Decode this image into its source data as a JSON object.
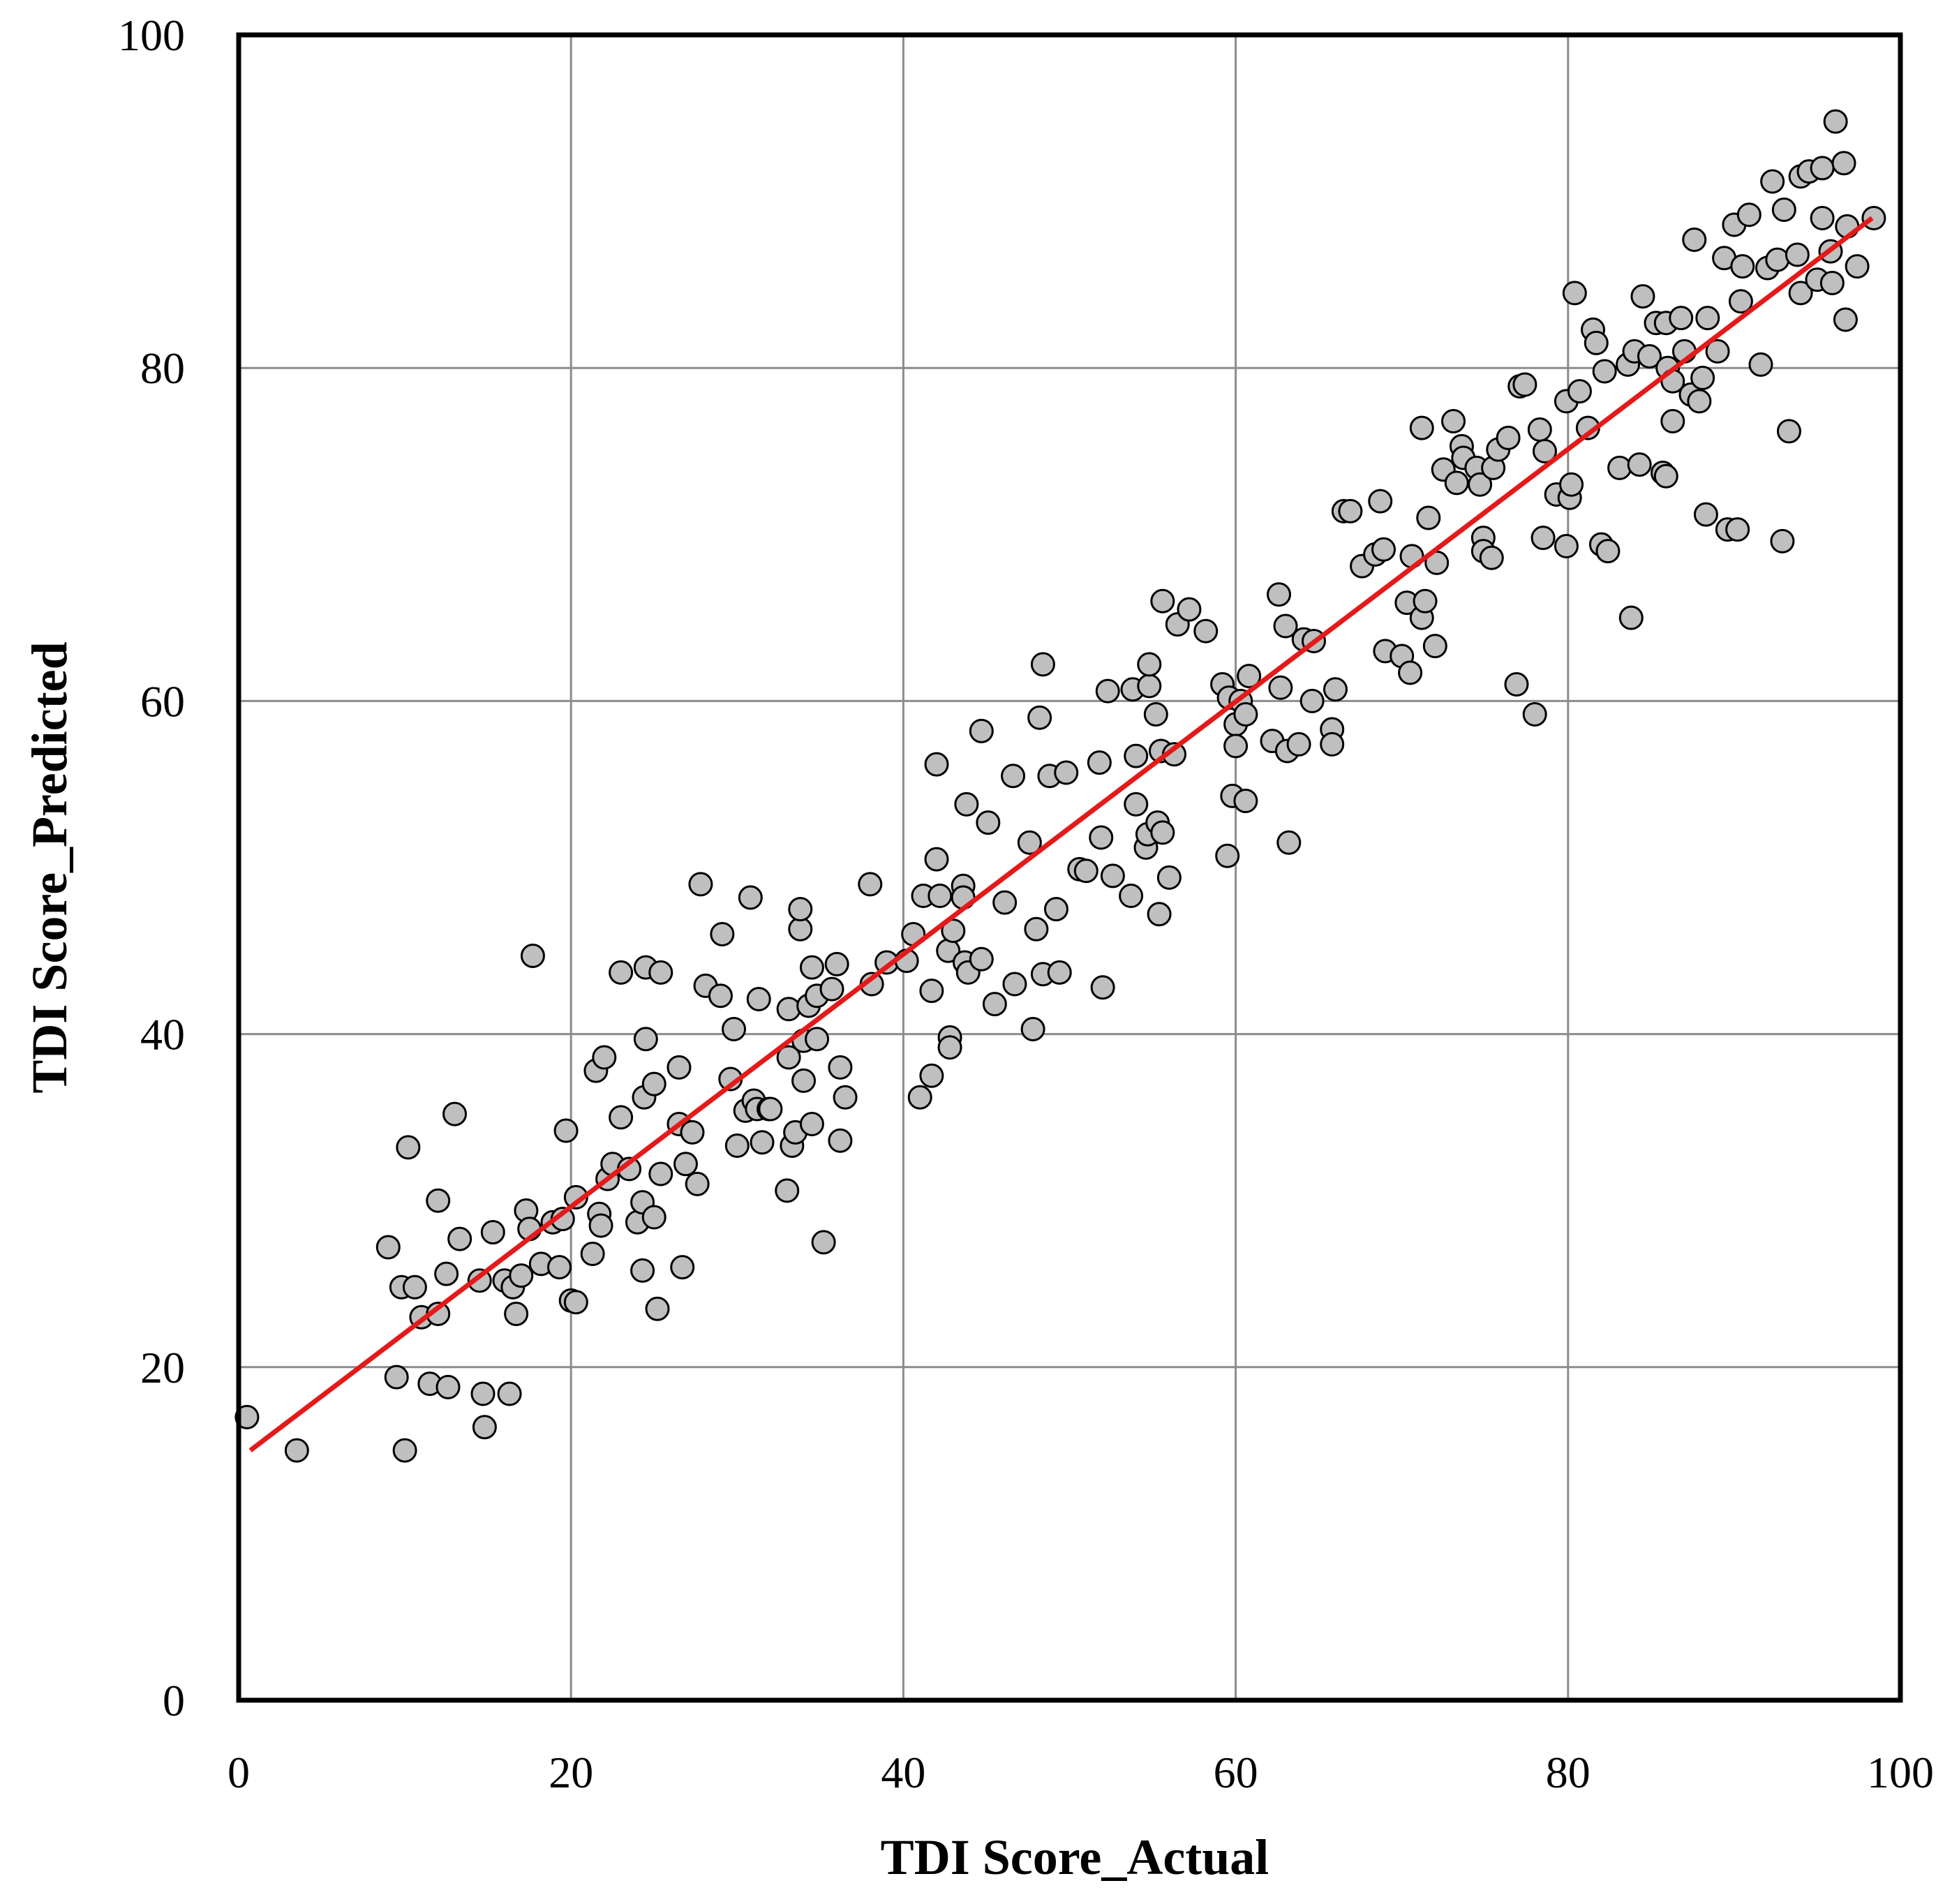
{
  "chart_data": {
    "type": "scatter",
    "title": "",
    "xlabel": "TDI Score_Actual",
    "ylabel": "TDI Score_Predicted",
    "xlim": [
      0,
      100
    ],
    "ylim": [
      0,
      100
    ],
    "xticks": [
      "0",
      "20",
      "40",
      "60",
      "80",
      "100"
    ],
    "yticks": [
      "0",
      "20",
      "40",
      "60",
      "80",
      "100"
    ],
    "grid": true,
    "legend": "none",
    "colors": {
      "marker_fill": "#bfbfbf",
      "marker_edge": "#000000",
      "fit_line": "#e41a1a",
      "grid": "#8c8c8c"
    },
    "fit_line": {
      "x": [
        0.7,
        98.3
      ],
      "y": [
        15,
        89
      ]
    },
    "points": [
      [
        0.5,
        17
      ],
      [
        3.5,
        15
      ],
      [
        9,
        27.2
      ],
      [
        9.5,
        19.4
      ],
      [
        10,
        15
      ],
      [
        10.2,
        33.2
      ],
      [
        9.8,
        24.8
      ],
      [
        10.6,
        24.8
      ],
      [
        11,
        23
      ],
      [
        11.5,
        19
      ],
      [
        12,
        30
      ],
      [
        12,
        23.2
      ],
      [
        12.5,
        25.6
      ],
      [
        12.6,
        18.8
      ],
      [
        13,
        35.2
      ],
      [
        13.3,
        27.7
      ],
      [
        14.5,
        25.2
      ],
      [
        14.7,
        18.4
      ],
      [
        14.8,
        16.4
      ],
      [
        15.3,
        28.1
      ],
      [
        16,
        25.2
      ],
      [
        16.3,
        18.4
      ],
      [
        16.5,
        24.8
      ],
      [
        16.7,
        23.2
      ],
      [
        17,
        25.5
      ],
      [
        17.3,
        29.4
      ],
      [
        17.5,
        28.3
      ],
      [
        17.7,
        44.7
      ],
      [
        18.2,
        26.2
      ],
      [
        18.9,
        28.7
      ],
      [
        19.3,
        26
      ],
      [
        19.5,
        28.9
      ],
      [
        19.7,
        34.2
      ],
      [
        20,
        24
      ],
      [
        20.3,
        23.9
      ],
      [
        20.3,
        30.2
      ],
      [
        21.3,
        26.8
      ],
      [
        21.5,
        37.8
      ],
      [
        21.7,
        29.2
      ],
      [
        21.8,
        28.5
      ],
      [
        22,
        38.6
      ],
      [
        22.2,
        31.3
      ],
      [
        22.5,
        32.2
      ],
      [
        23,
        35
      ],
      [
        23,
        43.7
      ],
      [
        23.5,
        31.9
      ],
      [
        24,
        28.7
      ],
      [
        24.3,
        29.9
      ],
      [
        24.3,
        25.8
      ],
      [
        24.4,
        36.2
      ],
      [
        24.5,
        39.7
      ],
      [
        24.5,
        44
      ],
      [
        25,
        29
      ],
      [
        25,
        37
      ],
      [
        25.2,
        23.5
      ],
      [
        25.4,
        31.6
      ],
      [
        25.4,
        43.7
      ],
      [
        26.5,
        34.6
      ],
      [
        26.5,
        38
      ],
      [
        26.7,
        26
      ],
      [
        26.9,
        32.2
      ],
      [
        27.3,
        34.1
      ],
      [
        27.6,
        31
      ],
      [
        27.8,
        49
      ],
      [
        28.1,
        42.9
      ],
      [
        29,
        42.3
      ],
      [
        29.1,
        46
      ],
      [
        29.6,
        37.3
      ],
      [
        29.8,
        40.3
      ],
      [
        30,
        33.3
      ],
      [
        30.5,
        35.4
      ],
      [
        30.8,
        48.2
      ],
      [
        31,
        36
      ],
      [
        31.2,
        35.5
      ],
      [
        31.3,
        42.1
      ],
      [
        31.5,
        33.5
      ],
      [
        31.9,
        35.5
      ],
      [
        32,
        35.5
      ],
      [
        33,
        30.6
      ],
      [
        33.1,
        41.5
      ],
      [
        33.1,
        38.6
      ],
      [
        33.3,
        33.3
      ],
      [
        33.5,
        34.1
      ],
      [
        33.8,
        46.3
      ],
      [
        33.8,
        47.5
      ],
      [
        34,
        37.2
      ],
      [
        34,
        39.6
      ],
      [
        34.3,
        41.7
      ],
      [
        34.5,
        44
      ],
      [
        34.5,
        34.6
      ],
      [
        34.8,
        39.7
      ],
      [
        34.8,
        42.3
      ],
      [
        35.2,
        27.5
      ],
      [
        35.7,
        42.7
      ],
      [
        36,
        44.2
      ],
      [
        36.2,
        38
      ],
      [
        36.2,
        33.6
      ],
      [
        36.5,
        36.2
      ],
      [
        38,
        49
      ],
      [
        38.1,
        43
      ],
      [
        39,
        44.3
      ],
      [
        40.2,
        44.4
      ],
      [
        40.6,
        46
      ],
      [
        41,
        36.2
      ],
      [
        41.2,
        48.3
      ],
      [
        41.7,
        37.5
      ],
      [
        41.7,
        42.6
      ],
      [
        42,
        56.2
      ],
      [
        42,
        50.5
      ],
      [
        42.2,
        48.3
      ],
      [
        42.7,
        45
      ],
      [
        42.8,
        39.8
      ],
      [
        42.8,
        39.2
      ],
      [
        43,
        46.2
      ],
      [
        43.6,
        48.9
      ],
      [
        43.6,
        48.2
      ],
      [
        43.7,
        44.3
      ],
      [
        43.8,
        53.8
      ],
      [
        43.9,
        43.7
      ],
      [
        44.7,
        58.2
      ],
      [
        44.7,
        44.5
      ],
      [
        45.1,
        52.7
      ],
      [
        45.5,
        41.8
      ],
      [
        46.1,
        47.9
      ],
      [
        46.6,
        55.5
      ],
      [
        46.7,
        43
      ],
      [
        47.6,
        51.5
      ],
      [
        47.8,
        40.3
      ],
      [
        48,
        46.3
      ],
      [
        48.2,
        59
      ],
      [
        48.4,
        43.6
      ],
      [
        48.4,
        62.2
      ],
      [
        48.8,
        55.5
      ],
      [
        49.2,
        47.5
      ],
      [
        49.4,
        43.7
      ],
      [
        49.8,
        55.7
      ],
      [
        50.6,
        49.9
      ],
      [
        51,
        49.8
      ],
      [
        51.8,
        56.3
      ],
      [
        51.9,
        51.8
      ],
      [
        52,
        42.8
      ],
      [
        52.3,
        60.6
      ],
      [
        52.6,
        49.5
      ],
      [
        53.7,
        48.3
      ],
      [
        53.8,
        60.7
      ],
      [
        54,
        56.7
      ],
      [
        54,
        53.8
      ],
      [
        54.6,
        51.2
      ],
      [
        54.7,
        52
      ],
      [
        54.8,
        60.9
      ],
      [
        54.8,
        62.2
      ],
      [
        55.2,
        59.2
      ],
      [
        55.3,
        52.7
      ],
      [
        55.4,
        47.2
      ],
      [
        55.5,
        57
      ],
      [
        55.6,
        52.1
      ],
      [
        55.6,
        66
      ],
      [
        56,
        49.4
      ],
      [
        56.3,
        56.8
      ],
      [
        56.5,
        64.6
      ],
      [
        57.2,
        65.5
      ],
      [
        58.2,
        64.2
      ],
      [
        59.2,
        61
      ],
      [
        59.5,
        50.7
      ],
      [
        59.6,
        60.2
      ],
      [
        59.8,
        54.3
      ],
      [
        60,
        58.6
      ],
      [
        60,
        57.3
      ],
      [
        60.3,
        60
      ],
      [
        60.6,
        54
      ],
      [
        60.6,
        59.2
      ],
      [
        60.8,
        61.5
      ],
      [
        62.2,
        57.6
      ],
      [
        62.6,
        66.4
      ],
      [
        62.7,
        60.8
      ],
      [
        63,
        64.5
      ],
      [
        63.1,
        57
      ],
      [
        63.2,
        51.5
      ],
      [
        63.8,
        57.4
      ],
      [
        64.1,
        63.7
      ],
      [
        64.6,
        60
      ],
      [
        64.7,
        63.6
      ],
      [
        65.8,
        58.3
      ],
      [
        65.8,
        57.4
      ],
      [
        66,
        60.7
      ],
      [
        66.5,
        71.4
      ],
      [
        66.9,
        71.4
      ],
      [
        67.6,
        68.1
      ],
      [
        68.4,
        68.8
      ],
      [
        68.7,
        72
      ],
      [
        68.9,
        69.1
      ],
      [
        69,
        63
      ],
      [
        70,
        62.7
      ],
      [
        70.3,
        65.9
      ],
      [
        70.5,
        61.7
      ],
      [
        70.6,
        68.7
      ],
      [
        71.2,
        65
      ],
      [
        71.2,
        76.4
      ],
      [
        71.4,
        66
      ],
      [
        71.6,
        71
      ],
      [
        72,
        63.3
      ],
      [
        72.1,
        68.3
      ],
      [
        72.5,
        73.9
      ],
      [
        73.1,
        76.8
      ],
      [
        73.3,
        73.1
      ],
      [
        73.6,
        75.3
      ],
      [
        73.7,
        74.6
      ],
      [
        74.5,
        74
      ],
      [
        74.7,
        73
      ],
      [
        74.9,
        69.8
      ],
      [
        74.9,
        69
      ],
      [
        75.4,
        68.6
      ],
      [
        75.5,
        74
      ],
      [
        75.8,
        75.1
      ],
      [
        76.4,
        75.8
      ],
      [
        76.9,
        61
      ],
      [
        77.1,
        78.9
      ],
      [
        77.4,
        79
      ],
      [
        78,
        59.2
      ],
      [
        78.3,
        76.3
      ],
      [
        78.5,
        69.8
      ],
      [
        78.6,
        75
      ],
      [
        79.3,
        72.4
      ],
      [
        79.9,
        78
      ],
      [
        79.9,
        69.3
      ],
      [
        80.1,
        72.2
      ],
      [
        80.2,
        73
      ],
      [
        80.4,
        84.5
      ],
      [
        80.7,
        78.6
      ],
      [
        81.2,
        76.4
      ],
      [
        81.5,
        82.3
      ],
      [
        81.7,
        81.5
      ],
      [
        82,
        69.4
      ],
      [
        82.2,
        79.8
      ],
      [
        82.4,
        69
      ],
      [
        83.1,
        74
      ],
      [
        83.6,
        80.2
      ],
      [
        83.8,
        65
      ],
      [
        84,
        81
      ],
      [
        84.3,
        74.2
      ],
      [
        84.5,
        84.3
      ],
      [
        84.9,
        80.7
      ],
      [
        85.3,
        82.7
      ],
      [
        85.7,
        73.7
      ],
      [
        85.9,
        82.7
      ],
      [
        85.9,
        73.5
      ],
      [
        86,
        80
      ],
      [
        86.3,
        79.2
      ],
      [
        86.3,
        76.8
      ],
      [
        86.8,
        83
      ],
      [
        87,
        81
      ],
      [
        87.4,
        78.4
      ],
      [
        87.6,
        87.7
      ],
      [
        87.9,
        78
      ],
      [
        88.1,
        79.4
      ],
      [
        88.3,
        71.2
      ],
      [
        88.4,
        83
      ],
      [
        89,
        81
      ],
      [
        89.4,
        86.6
      ],
      [
        89.6,
        70.3
      ],
      [
        90,
        88.6
      ],
      [
        90.2,
        70.3
      ],
      [
        90.4,
        84
      ],
      [
        90.5,
        86.1
      ],
      [
        90.9,
        89.2
      ],
      [
        91.6,
        80.2
      ],
      [
        92,
        86
      ],
      [
        92.3,
        91.2
      ],
      [
        92.6,
        86.5
      ],
      [
        92.9,
        69.6
      ],
      [
        93,
        89.5
      ],
      [
        93.3,
        76.2
      ],
      [
        93.8,
        86.8
      ],
      [
        94,
        91.5
      ],
      [
        94,
        84.5
      ],
      [
        94.5,
        91.8
      ],
      [
        95,
        85.3
      ],
      [
        95.3,
        92
      ],
      [
        95.3,
        89
      ],
      [
        95.8,
        87
      ],
      [
        95.9,
        85.1
      ],
      [
        96.1,
        94.8
      ],
      [
        96.6,
        92.3
      ],
      [
        96.7,
        82.9
      ],
      [
        96.8,
        88.5
      ],
      [
        97.4,
        86.1
      ],
      [
        98.4,
        89
      ]
    ]
  }
}
